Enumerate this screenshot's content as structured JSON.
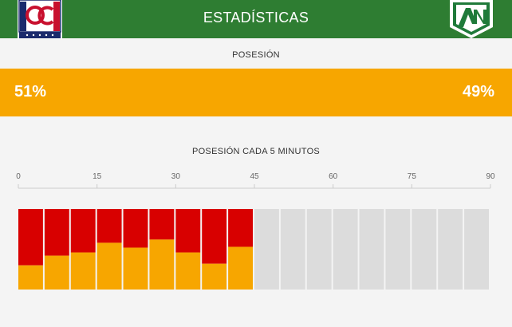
{
  "header": {
    "title": "ESTADÍSTICAS",
    "home_crest": {
      "icon": "once-caldas-crest-icon",
      "text": "OC"
    },
    "away_crest": {
      "icon": "atletico-nacional-crest-icon",
      "text": "AN"
    }
  },
  "possession": {
    "label": "POSESIÓN",
    "home_pct": "51%",
    "away_pct": "49%",
    "home_value": 51,
    "away_value": 49
  },
  "timeline": {
    "label": "POSESIÓN CADA 5 MINUTOS",
    "ticks": [
      "0",
      "15",
      "30",
      "45",
      "60",
      "75",
      "90"
    ],
    "home_share_per_interval": [
      0.3,
      0.42,
      0.46,
      0.58,
      0.52,
      0.62,
      0.46,
      0.32,
      0.53
    ],
    "total_intervals": 18
  },
  "colors": {
    "header_bg": "#2e7d32",
    "home": "#d80000",
    "away": "#f7a600",
    "empty": "#dcdcdc"
  }
}
